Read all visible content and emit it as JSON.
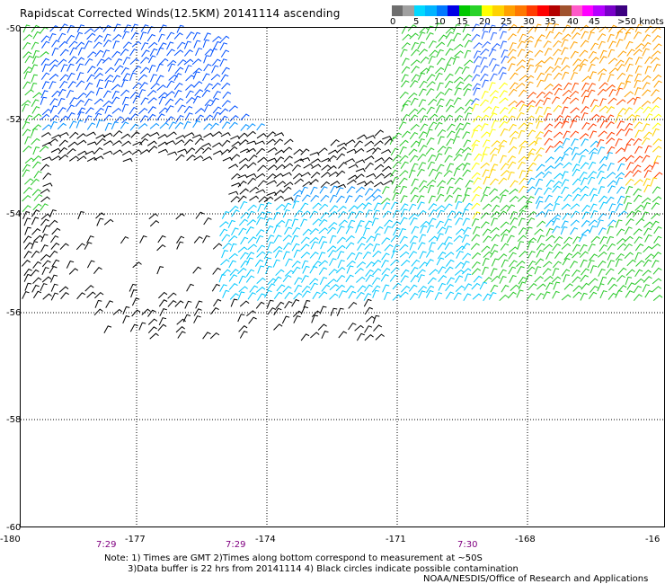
{
  "title": "Rapidscat Corrected Winds(12.5KM) 20141114 ascending",
  "colorbar": {
    "colors": [
      "#6e6e6e",
      "#a0a0a0",
      "#00d8ff",
      "#00b4ff",
      "#0078ff",
      "#0000e6",
      "#00c800",
      "#28d228",
      "#ffff00",
      "#ffd200",
      "#ffa000",
      "#ff7800",
      "#ff3c00",
      "#ff0000",
      "#b40000",
      "#a0522d",
      "#ff5ac8",
      "#ff00ff",
      "#b400ff",
      "#7800c8",
      "#3c0080"
    ],
    "labels": [
      "0",
      "5",
      "10",
      "15",
      "20",
      "25",
      "30",
      "35",
      "40",
      "45",
      ">50 knots"
    ]
  },
  "axes": {
    "x_ticks": [
      "-180",
      "-177",
      "-174",
      "-171",
      "-168",
      "-16"
    ],
    "y_ticks": [
      "-50",
      "-52",
      "-54",
      "-56",
      "-58",
      "-60"
    ],
    "time_labels": [
      "7:29",
      "7:29",
      "7:30"
    ],
    "time_color": "#800080"
  },
  "notes": {
    "line1": "Note: 1) Times are GMT 2)Times along bottom correspond to measurement at ~50S",
    "line2": "3)Data buffer is 22 hrs from 20141114 4) Black circles indicate possible contamination",
    "credit": "NOAA/NESDIS/Office of Research and Applications"
  }
}
